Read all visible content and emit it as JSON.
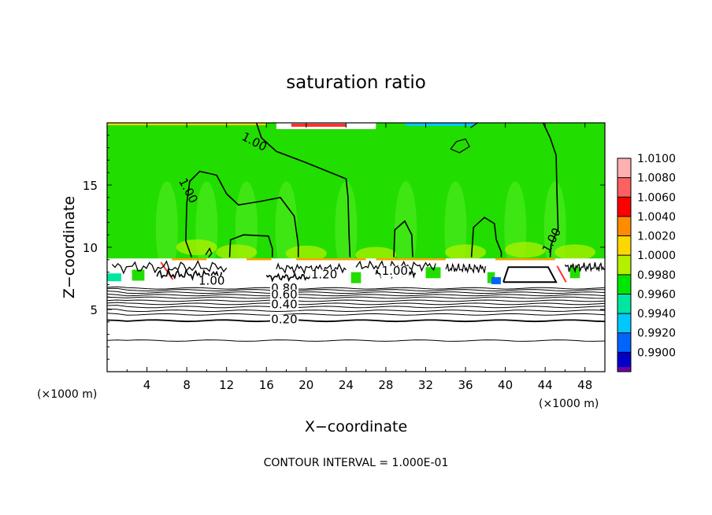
{
  "chart_data": {
    "type": "heatmap",
    "title": "saturation ratio",
    "xlabel": "X−coordinate",
    "ylabel": "Z−coordinate",
    "x_unit_left": "(×1000 m)",
    "x_unit_right": "(×1000 m)",
    "xlim": [
      0,
      50
    ],
    "ylim": [
      0,
      20
    ],
    "x_ticks": [
      {
        "value": 4,
        "label": "4"
      },
      {
        "value": 8,
        "label": "8"
      },
      {
        "value": 12,
        "label": "12"
      },
      {
        "value": 16,
        "label": "16"
      },
      {
        "value": 20,
        "label": "20"
      },
      {
        "value": 24,
        "label": "24"
      },
      {
        "value": 28,
        "label": "28"
      },
      {
        "value": 32,
        "label": "32"
      },
      {
        "value": 36,
        "label": "36"
      },
      {
        "value": 40,
        "label": "40"
      },
      {
        "value": 44,
        "label": "44"
      },
      {
        "value": 48,
        "label": "48"
      }
    ],
    "y_ticks": [
      {
        "value": 5,
        "label": "5"
      },
      {
        "value": 10,
        "label": "10"
      },
      {
        "value": 15,
        "label": "15"
      }
    ],
    "colorbar": {
      "min": 0.99,
      "max": 1.01,
      "levels": [
        {
          "label": "1.0100",
          "color": "#ffb0b0"
        },
        {
          "label": "1.0080",
          "color": "#ff6060"
        },
        {
          "label": "1.0060",
          "color": "#ff0000"
        },
        {
          "label": "1.0040",
          "color": "#ff8c00"
        },
        {
          "label": "1.0020",
          "color": "#ffd700"
        },
        {
          "label": "1.0000",
          "color": "#b4f000"
        },
        {
          "label": "0.9980",
          "color": "#00e600"
        },
        {
          "label": "0.9960",
          "color": "#00e6a0"
        },
        {
          "label": "0.9940",
          "color": "#00c8ff"
        },
        {
          "label": "0.9920",
          "color": "#0064ff"
        },
        {
          "label": "0.9900",
          "color": "#0000c8"
        }
      ],
      "bottom_color": "#7000a0"
    },
    "contour_labels": [
      {
        "label": "1.00",
        "x": 14.6,
        "y": 18.2
      },
      {
        "label": "1.00",
        "x": 7.8,
        "y": 14.4
      },
      {
        "label": "1.00",
        "x": 45.0,
        "y": 10.4
      },
      {
        "label": "1.00",
        "x": 10.5,
        "y": 7.0
      },
      {
        "label": "1.20",
        "x": 21.8,
        "y": 7.5
      },
      {
        "label": "1.00",
        "x": 28.9,
        "y": 7.8
      },
      {
        "label": "0.80",
        "x": 17.8,
        "y": 6.4
      },
      {
        "label": "0.60",
        "x": 17.8,
        "y": 5.9
      },
      {
        "label": "0.40",
        "x": 17.8,
        "y": 5.1
      },
      {
        "label": "0.20",
        "x": 17.8,
        "y": 3.9
      }
    ],
    "regions": {
      "upper_field_value": 0.9985,
      "cloud_layer_base_km": 6.8,
      "cloud_layer_top_km": 9.1,
      "subsaturated_below_km": 6.8
    },
    "contour_interval_text": "CONTOUR INTERVAL =  1.000E-01"
  }
}
